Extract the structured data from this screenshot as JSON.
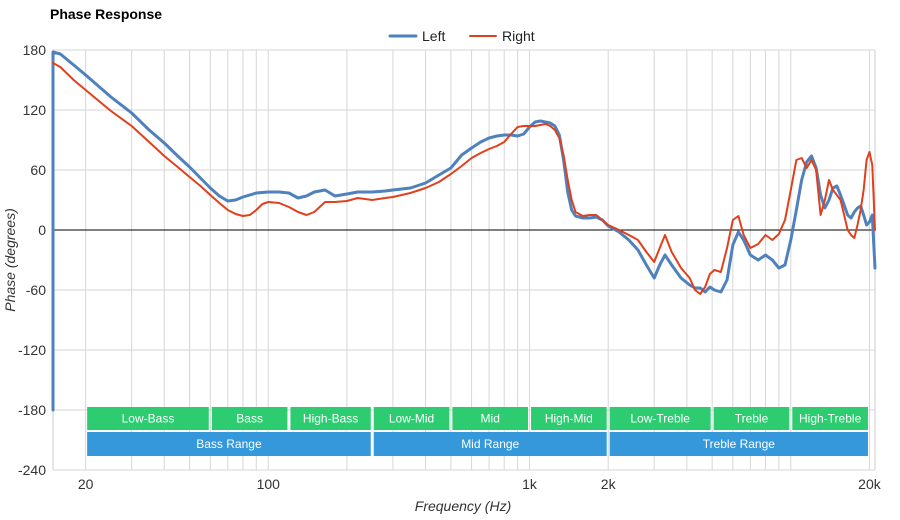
{
  "chart_data": {
    "type": "line",
    "title": "Phase Response",
    "xlabel": "Frequency (Hz)",
    "ylabel": "Phase (degrees)",
    "xscale": "log",
    "xlim": [
      15,
      21000
    ],
    "ylim": [
      -240,
      180
    ],
    "grid": true,
    "legend_position": "top-center",
    "x_ticks": [
      {
        "value": 20,
        "label": "20"
      },
      {
        "value": 100,
        "label": "100"
      },
      {
        "value": 1000,
        "label": "1k"
      },
      {
        "value": 2000,
        "label": "2k"
      },
      {
        "value": 20000,
        "label": "20k"
      }
    ],
    "y_ticks": [
      180,
      120,
      60,
      0,
      -60,
      -120,
      -180,
      -240
    ],
    "bands_upper": [
      {
        "label": "Low-Bass",
        "from": 20,
        "to": 60,
        "color": "#2ecc71"
      },
      {
        "label": "Bass",
        "from": 60,
        "to": 120,
        "color": "#2ecc71"
      },
      {
        "label": "High-Bass",
        "from": 120,
        "to": 250,
        "color": "#2ecc71"
      },
      {
        "label": "Low-Mid",
        "from": 250,
        "to": 500,
        "color": "#2ecc71"
      },
      {
        "label": "Mid",
        "from": 500,
        "to": 1000,
        "color": "#2ecc71"
      },
      {
        "label": "High-Mid",
        "from": 1000,
        "to": 2000,
        "color": "#2ecc71"
      },
      {
        "label": "Low-Treble",
        "from": 2000,
        "to": 5000,
        "color": "#2ecc71"
      },
      {
        "label": "Treble",
        "from": 5000,
        "to": 10000,
        "color": "#2ecc71"
      },
      {
        "label": "High-Treble",
        "from": 10000,
        "to": 20000,
        "color": "#2ecc71"
      }
    ],
    "bands_lower": [
      {
        "label": "Bass Range",
        "from": 20,
        "to": 250,
        "color": "#3498db"
      },
      {
        "label": "Mid Range",
        "from": 250,
        "to": 2000,
        "color": "#3498db"
      },
      {
        "label": "Treble Range",
        "from": 2000,
        "to": 20000,
        "color": "#3498db"
      }
    ],
    "series": [
      {
        "name": "Left",
        "color": "#4f81bd",
        "points": [
          [
            15,
            -180
          ],
          [
            15,
            178
          ],
          [
            16,
            176
          ],
          [
            18,
            165
          ],
          [
            20,
            155
          ],
          [
            25,
            133
          ],
          [
            30,
            117
          ],
          [
            35,
            100
          ],
          [
            40,
            87
          ],
          [
            45,
            74
          ],
          [
            50,
            63
          ],
          [
            55,
            52
          ],
          [
            60,
            42
          ],
          [
            65,
            34
          ],
          [
            70,
            29
          ],
          [
            75,
            30
          ],
          [
            80,
            33
          ],
          [
            90,
            37
          ],
          [
            100,
            38
          ],
          [
            110,
            38
          ],
          [
            120,
            37
          ],
          [
            130,
            32
          ],
          [
            140,
            34
          ],
          [
            150,
            38
          ],
          [
            165,
            40
          ],
          [
            180,
            34
          ],
          [
            200,
            36
          ],
          [
            220,
            38
          ],
          [
            250,
            38
          ],
          [
            280,
            39
          ],
          [
            300,
            40
          ],
          [
            350,
            42
          ],
          [
            400,
            47
          ],
          [
            450,
            55
          ],
          [
            500,
            62
          ],
          [
            550,
            75
          ],
          [
            600,
            82
          ],
          [
            650,
            88
          ],
          [
            700,
            92
          ],
          [
            750,
            94
          ],
          [
            800,
            95
          ],
          [
            850,
            95
          ],
          [
            900,
            94
          ],
          [
            950,
            96
          ],
          [
            1000,
            103
          ],
          [
            1050,
            108
          ],
          [
            1100,
            109
          ],
          [
            1150,
            108
          ],
          [
            1200,
            107
          ],
          [
            1250,
            104
          ],
          [
            1300,
            95
          ],
          [
            1350,
            70
          ],
          [
            1400,
            38
          ],
          [
            1450,
            20
          ],
          [
            1500,
            14
          ],
          [
            1600,
            12
          ],
          [
            1700,
            12
          ],
          [
            1800,
            13
          ],
          [
            1900,
            10
          ],
          [
            2000,
            4
          ],
          [
            2200,
            -2
          ],
          [
            2400,
            -10
          ],
          [
            2600,
            -20
          ],
          [
            2800,
            -35
          ],
          [
            3000,
            -48
          ],
          [
            3150,
            -35
          ],
          [
            3300,
            -25
          ],
          [
            3500,
            -35
          ],
          [
            3800,
            -48
          ],
          [
            4100,
            -55
          ],
          [
            4300,
            -58
          ],
          [
            4500,
            -58
          ],
          [
            4700,
            -62
          ],
          [
            4900,
            -57
          ],
          [
            5100,
            -60
          ],
          [
            5400,
            -62
          ],
          [
            5700,
            -50
          ],
          [
            6000,
            -15
          ],
          [
            6300,
            -2
          ],
          [
            6600,
            -10
          ],
          [
            7000,
            -25
          ],
          [
            7500,
            -30
          ],
          [
            8000,
            -25
          ],
          [
            8500,
            -30
          ],
          [
            9000,
            -38
          ],
          [
            9500,
            -35
          ],
          [
            10000,
            -10
          ],
          [
            10500,
            20
          ],
          [
            11000,
            50
          ],
          [
            11500,
            68
          ],
          [
            12000,
            74
          ],
          [
            12500,
            62
          ],
          [
            13000,
            35
          ],
          [
            13500,
            22
          ],
          [
            14000,
            30
          ],
          [
            14500,
            42
          ],
          [
            15000,
            44
          ],
          [
            15500,
            35
          ],
          [
            16000,
            25
          ],
          [
            16500,
            15
          ],
          [
            17000,
            12
          ],
          [
            17500,
            18
          ],
          [
            18000,
            22
          ],
          [
            18500,
            24
          ],
          [
            19000,
            15
          ],
          [
            19500,
            5
          ],
          [
            20000,
            8
          ],
          [
            20500,
            15
          ],
          [
            21000,
            -38
          ]
        ]
      },
      {
        "name": "Right",
        "color": "#e0401c",
        "points": [
          [
            15,
            167
          ],
          [
            16,
            163
          ],
          [
            18,
            150
          ],
          [
            20,
            140
          ],
          [
            25,
            119
          ],
          [
            30,
            104
          ],
          [
            35,
            88
          ],
          [
            40,
            74
          ],
          [
            45,
            63
          ],
          [
            50,
            53
          ],
          [
            55,
            44
          ],
          [
            60,
            35
          ],
          [
            65,
            27
          ],
          [
            70,
            20
          ],
          [
            75,
            16
          ],
          [
            80,
            14
          ],
          [
            85,
            15
          ],
          [
            90,
            20
          ],
          [
            95,
            26
          ],
          [
            100,
            28
          ],
          [
            110,
            27
          ],
          [
            120,
            23
          ],
          [
            130,
            18
          ],
          [
            140,
            15
          ],
          [
            150,
            18
          ],
          [
            165,
            28
          ],
          [
            180,
            28
          ],
          [
            200,
            29
          ],
          [
            220,
            32
          ],
          [
            250,
            30
          ],
          [
            280,
            32
          ],
          [
            300,
            33
          ],
          [
            350,
            37
          ],
          [
            400,
            42
          ],
          [
            450,
            48
          ],
          [
            500,
            56
          ],
          [
            550,
            64
          ],
          [
            600,
            72
          ],
          [
            650,
            77
          ],
          [
            700,
            81
          ],
          [
            750,
            84
          ],
          [
            800,
            88
          ],
          [
            850,
            96
          ],
          [
            900,
            103
          ],
          [
            950,
            104
          ],
          [
            1000,
            104
          ],
          [
            1050,
            104
          ],
          [
            1100,
            105
          ],
          [
            1150,
            106
          ],
          [
            1200,
            104
          ],
          [
            1250,
            100
          ],
          [
            1300,
            92
          ],
          [
            1350,
            75
          ],
          [
            1400,
            50
          ],
          [
            1450,
            30
          ],
          [
            1500,
            18
          ],
          [
            1600,
            14
          ],
          [
            1700,
            15
          ],
          [
            1800,
            15
          ],
          [
            1900,
            10
          ],
          [
            2000,
            5
          ],
          [
            2200,
            0
          ],
          [
            2400,
            -5
          ],
          [
            2600,
            -10
          ],
          [
            2800,
            -22
          ],
          [
            3000,
            -32
          ],
          [
            3150,
            -18
          ],
          [
            3300,
            -5
          ],
          [
            3500,
            -22
          ],
          [
            3800,
            -38
          ],
          [
            4100,
            -48
          ],
          [
            4300,
            -60
          ],
          [
            4500,
            -64
          ],
          [
            4700,
            -57
          ],
          [
            4900,
            -44
          ],
          [
            5100,
            -40
          ],
          [
            5400,
            -42
          ],
          [
            5700,
            -18
          ],
          [
            6000,
            10
          ],
          [
            6300,
            14
          ],
          [
            6600,
            -5
          ],
          [
            7000,
            -18
          ],
          [
            7500,
            -14
          ],
          [
            8000,
            -5
          ],
          [
            8500,
            -10
          ],
          [
            9000,
            -4
          ],
          [
            9500,
            10
          ],
          [
            10000,
            40
          ],
          [
            10500,
            70
          ],
          [
            11000,
            72
          ],
          [
            11500,
            62
          ],
          [
            12000,
            70
          ],
          [
            12500,
            60
          ],
          [
            13000,
            15
          ],
          [
            13500,
            30
          ],
          [
            14000,
            50
          ],
          [
            14500,
            40
          ],
          [
            15000,
            35
          ],
          [
            15500,
            30
          ],
          [
            16000,
            15
          ],
          [
            16500,
            0
          ],
          [
            17000,
            -5
          ],
          [
            17500,
            -8
          ],
          [
            18000,
            5
          ],
          [
            18500,
            20
          ],
          [
            19000,
            40
          ],
          [
            19500,
            70
          ],
          [
            20000,
            78
          ],
          [
            20500,
            65
          ],
          [
            21000,
            0
          ]
        ]
      }
    ]
  }
}
